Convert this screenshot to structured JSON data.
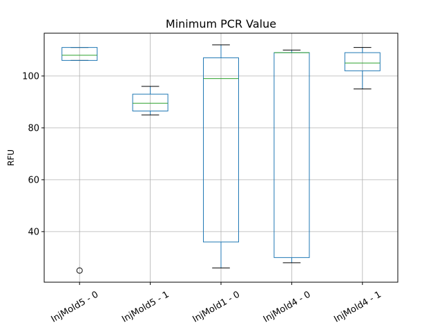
{
  "chart_data": {
    "type": "box",
    "title": "Minimum PCR Value",
    "xlabel": "",
    "ylabel": "RFU",
    "ylim": [
      20.5,
      116.5
    ],
    "yticks": [
      40,
      60,
      80,
      100
    ],
    "grid": true,
    "categories": [
      "InjMold5 - 0",
      "InjMold5 - 1",
      "InjMold1 - 0",
      "InjMold4 - 0",
      "InjMold4 - 1"
    ],
    "boxes": [
      {
        "whisker_low": 106,
        "q1": 106,
        "median": 108,
        "q3": 111,
        "whisker_high": 111,
        "outliers": [
          25
        ]
      },
      {
        "whisker_low": 85,
        "q1": 86.5,
        "median": 89.5,
        "q3": 93,
        "whisker_high": 96,
        "outliers": []
      },
      {
        "whisker_low": 26,
        "q1": 36,
        "median": 99,
        "q3": 107,
        "whisker_high": 112,
        "outliers": []
      },
      {
        "whisker_low": 28,
        "q1": 30,
        "median": 109,
        "q3": 109,
        "whisker_high": 110,
        "outliers": []
      },
      {
        "whisker_low": 95,
        "q1": 102,
        "median": 105,
        "q3": 109,
        "whisker_high": 111,
        "outliers": []
      }
    ],
    "colors": {
      "box": "#1f77b4",
      "median": "#2ca02c",
      "whisker": "#000000",
      "grid": "#b0b0b0"
    }
  }
}
